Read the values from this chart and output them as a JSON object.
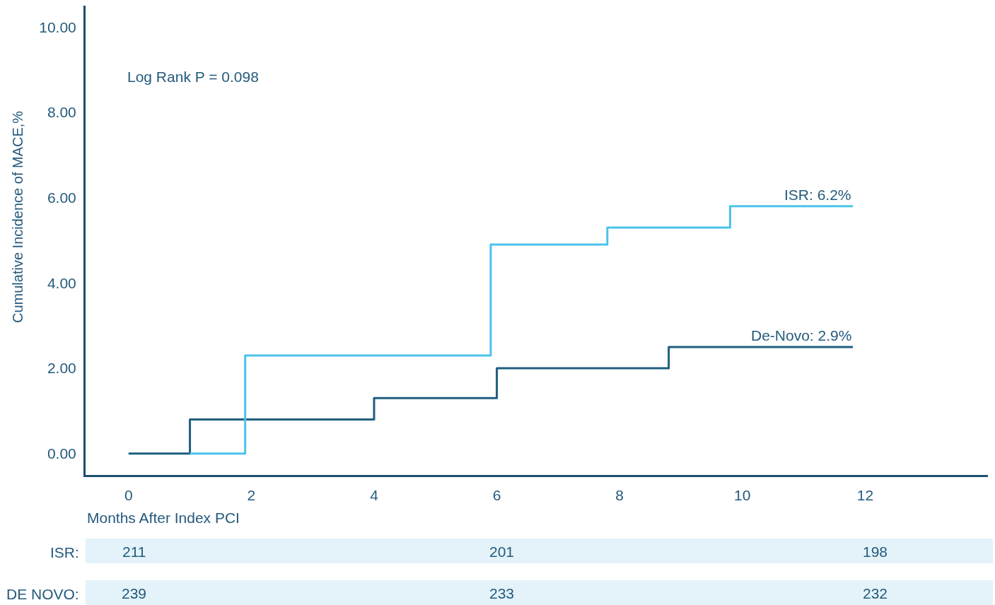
{
  "chart_data": {
    "type": "step",
    "ylabel": "Cumulative Incidence of MACE,%",
    "xlabel": "Months After Index PCI",
    "annotations": [
      "Log Rank P = 0.098",
      "ISR:",
      "211",
      "201",
      "198",
      "DE NOVO:",
      "239",
      "233",
      "232"
    ],
    "series": [
      {
        "name": "De-Novo: 2.9%",
        "color": "#1f5f80",
        "x": [
          0,
          1.0,
          4.0,
          6.0,
          8.8,
          11.8
        ],
        "values": [
          0,
          0.8,
          1.3,
          2.0,
          2.5,
          2.5
        ]
      },
      {
        "name": "ISR: 6.2%",
        "color": "#4bc3ec",
        "x": [
          1.0,
          1.9,
          5.9,
          7.8,
          9.8,
          11.8
        ],
        "values": [
          0,
          2.3,
          4.9,
          5.3,
          5.8,
          5.8
        ]
      }
    ],
    "xlim": [
      -0.7,
      14
    ],
    "ylim": [
      -0.5,
      10.5
    ],
    "xticks": [
      0,
      2,
      4,
      6,
      8,
      10,
      12
    ],
    "yticks": [
      {
        "value": 0,
        "label": "0.00"
      },
      {
        "value": 2,
        "label": "2.00"
      },
      {
        "value": 4,
        "label": "4.00"
      },
      {
        "value": 6,
        "label": "6.00"
      },
      {
        "value": 8,
        "label": "8.00"
      },
      {
        "value": 10,
        "label": "10.00"
      }
    ],
    "marker": "none",
    "line_style": "solid"
  }
}
